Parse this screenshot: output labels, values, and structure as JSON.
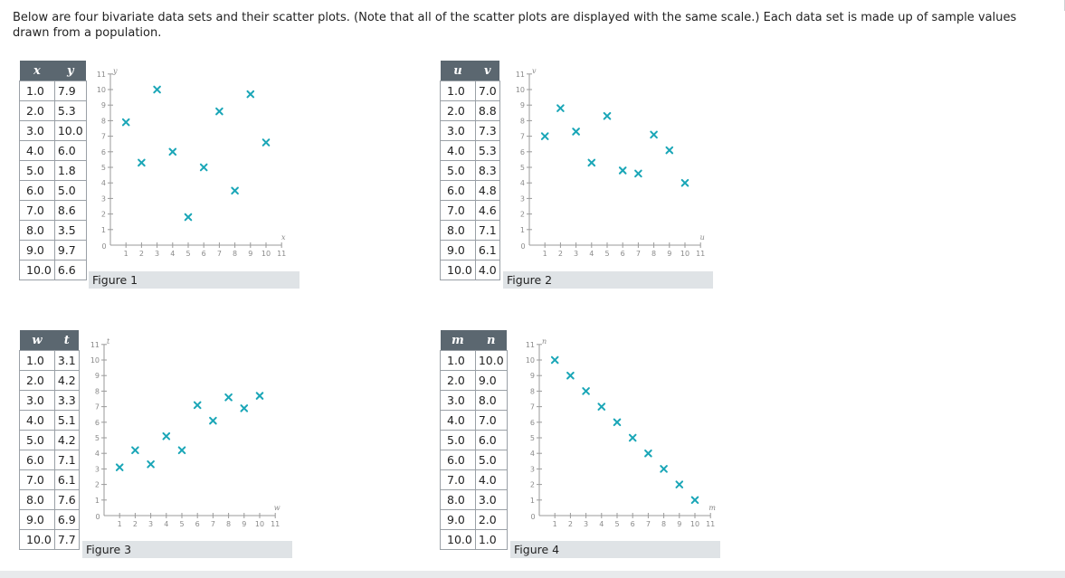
{
  "intro": "Below are four bivariate data sets and their scatter plots. (Note that all of the scatter plots are displayed with the same scale.) Each data set is made up of sample values drawn from a population.",
  "marker_color": "#1aa6b7",
  "table_header_color": "#5b6770",
  "chart_data": [
    {
      "type": "scatter",
      "caption": "Figure 1",
      "xlabel": "x",
      "ylabel": "y",
      "xlim": [
        0,
        11
      ],
      "ylim": [
        0,
        11
      ],
      "x_ticks": [
        1,
        2,
        3,
        4,
        5,
        6,
        7,
        8,
        9,
        10,
        11
      ],
      "y_ticks": [
        1,
        2,
        3,
        4,
        5,
        6,
        7,
        8,
        9,
        10,
        11
      ],
      "x": [
        "1.0",
        "2.0",
        "3.0",
        "4.0",
        "5.0",
        "6.0",
        "7.0",
        "8.0",
        "9.0",
        "10.0"
      ],
      "y": [
        "7.9",
        "5.3",
        "10.0",
        "6.0",
        "1.8",
        "5.0",
        "8.6",
        "3.5",
        "9.7",
        "6.6"
      ]
    },
    {
      "type": "scatter",
      "caption": "Figure 2",
      "xlabel": "u",
      "ylabel": "v",
      "xlim": [
        0,
        11
      ],
      "ylim": [
        0,
        11
      ],
      "x_ticks": [
        1,
        2,
        3,
        4,
        5,
        6,
        7,
        8,
        9,
        10,
        11
      ],
      "y_ticks": [
        1,
        2,
        3,
        4,
        5,
        6,
        7,
        8,
        9,
        10,
        11
      ],
      "x": [
        "1.0",
        "2.0",
        "3.0",
        "4.0",
        "5.0",
        "6.0",
        "7.0",
        "8.0",
        "9.0",
        "10.0"
      ],
      "y": [
        "7.0",
        "8.8",
        "7.3",
        "5.3",
        "8.3",
        "4.8",
        "4.6",
        "7.1",
        "6.1",
        "4.0"
      ]
    },
    {
      "type": "scatter",
      "caption": "Figure 3",
      "xlabel": "w",
      "ylabel": "t",
      "xlim": [
        0,
        11
      ],
      "ylim": [
        0,
        11
      ],
      "x_ticks": [
        1,
        2,
        3,
        4,
        5,
        6,
        7,
        8,
        9,
        10,
        11
      ],
      "y_ticks": [
        1,
        2,
        3,
        4,
        5,
        6,
        7,
        8,
        9,
        10,
        11
      ],
      "x": [
        "1.0",
        "2.0",
        "3.0",
        "4.0",
        "5.0",
        "6.0",
        "7.0",
        "8.0",
        "9.0",
        "10.0"
      ],
      "y": [
        "3.1",
        "4.2",
        "3.3",
        "5.1",
        "4.2",
        "7.1",
        "6.1",
        "7.6",
        "6.9",
        "7.7"
      ]
    },
    {
      "type": "scatter",
      "caption": "Figure 4",
      "xlabel": "m",
      "ylabel": "n",
      "xlim": [
        0,
        11
      ],
      "ylim": [
        0,
        11
      ],
      "x_ticks": [
        1,
        2,
        3,
        4,
        5,
        6,
        7,
        8,
        9,
        10,
        11
      ],
      "y_ticks": [
        1,
        2,
        3,
        4,
        5,
        6,
        7,
        8,
        9,
        10,
        11
      ],
      "x": [
        "1.0",
        "2.0",
        "3.0",
        "4.0",
        "5.0",
        "6.0",
        "7.0",
        "8.0",
        "9.0",
        "10.0"
      ],
      "y": [
        "10.0",
        "9.0",
        "8.0",
        "7.0",
        "6.0",
        "5.0",
        "4.0",
        "3.0",
        "2.0",
        "1.0"
      ]
    }
  ]
}
